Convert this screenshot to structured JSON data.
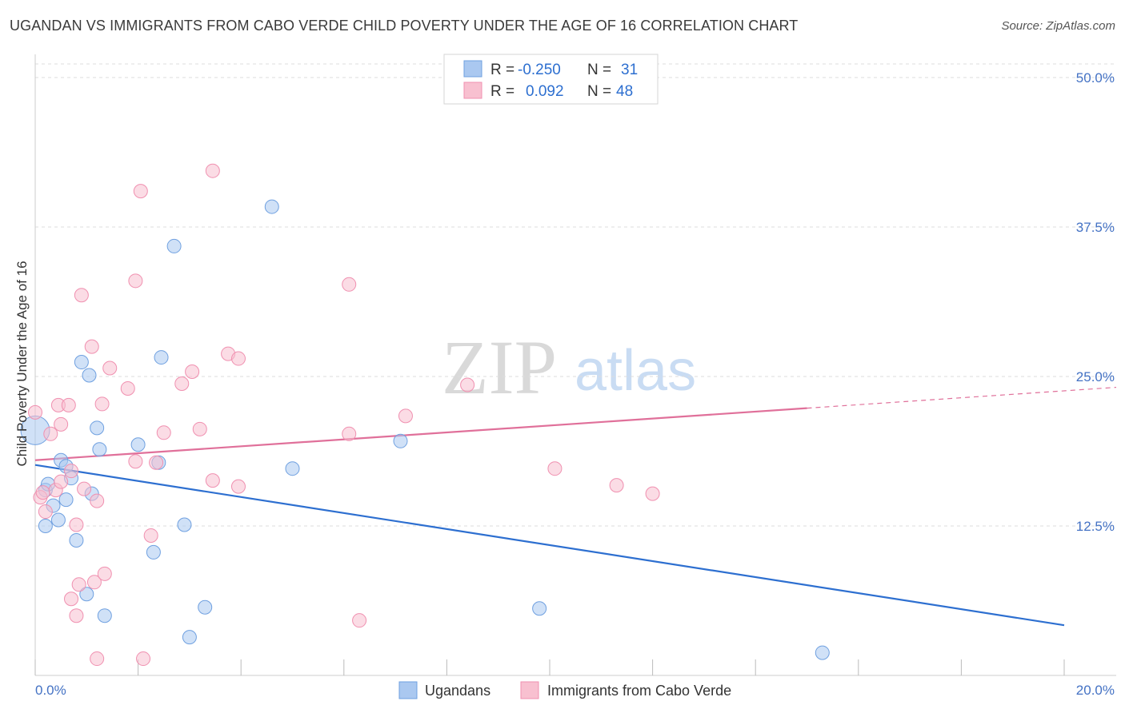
{
  "title": "UGANDAN VS IMMIGRANTS FROM CABO VERDE CHILD POVERTY UNDER THE AGE OF 16 CORRELATION CHART",
  "source": "Source: ZipAtlas.com",
  "watermark": {
    "zip": "ZIP",
    "atlas": "atlas"
  },
  "stats": [
    {
      "r_label": "R =",
      "r_value": "-0.250",
      "n_label": "N =",
      "n_value": "31",
      "color": "#aac8f0"
    },
    {
      "r_label": "R =",
      "r_value": "0.092",
      "n_label": "N =",
      "n_value": "48",
      "color": "#f8c0d0"
    }
  ],
  "legend": [
    {
      "label": "Ugandans",
      "color": "#aac8f0"
    },
    {
      "label": "Immigrants from Cabo Verde",
      "color": "#f8c0d0"
    }
  ],
  "chart_data": {
    "type": "scatter",
    "title": "UGANDAN VS IMMIGRANTS FROM CABO VERDE CHILD POVERTY UNDER THE AGE OF 16 CORRELATION CHART",
    "xlabel": "",
    "ylabel": "Child Poverty Under the Age of 16",
    "xlim": [
      0,
      20
    ],
    "ylim": [
      0,
      50
    ],
    "x_tick_labels": [
      "0.0%",
      "20.0%"
    ],
    "y_ticks": [
      {
        "value": 12.5,
        "label": "12.5%"
      },
      {
        "value": 25,
        "label": "25.0%"
      },
      {
        "value": 37.5,
        "label": "37.5%"
      },
      {
        "value": 50,
        "label": "50.0%"
      }
    ],
    "series": [
      {
        "name": "Ugandans",
        "color": "#aac8f0",
        "stroke": "#6fa0e0",
        "line_color": "#2d6fd0",
        "trend": {
          "x0": 0,
          "y0": 17.6,
          "x1": 20,
          "y1": 4.2,
          "solid_until": 20
        },
        "points": [
          [
            0.0,
            20.5
          ],
          [
            0.2,
            15.5
          ],
          [
            0.25,
            16.0
          ],
          [
            0.2,
            12.5
          ],
          [
            0.35,
            14.2
          ],
          [
            0.45,
            13.0
          ],
          [
            0.5,
            18.0
          ],
          [
            0.6,
            17.5
          ],
          [
            0.6,
            14.7
          ],
          [
            0.7,
            16.5
          ],
          [
            0.8,
            11.3
          ],
          [
            0.9,
            26.2
          ],
          [
            1.0,
            6.8
          ],
          [
            1.05,
            25.1
          ],
          [
            1.1,
            15.2
          ],
          [
            1.2,
            20.7
          ],
          [
            1.25,
            18.9
          ],
          [
            1.35,
            5.0
          ],
          [
            2.0,
            19.3
          ],
          [
            2.3,
            10.3
          ],
          [
            2.4,
            17.8
          ],
          [
            2.45,
            26.6
          ],
          [
            2.7,
            35.9
          ],
          [
            2.9,
            12.6
          ],
          [
            3.0,
            3.2
          ],
          [
            3.3,
            5.7
          ],
          [
            4.6,
            39.2
          ],
          [
            5.0,
            17.3
          ],
          [
            7.1,
            19.6
          ],
          [
            9.8,
            5.6
          ],
          [
            15.3,
            1.9
          ]
        ]
      },
      {
        "name": "Immigrants from Cabo Verde",
        "color": "#f8c0d0",
        "stroke": "#f090b0",
        "line_color": "#e0709a",
        "trend": {
          "x0": 0,
          "y0": 18.0,
          "x1": 20,
          "y1": 23.8,
          "solid_until": 15.0
        },
        "points": [
          [
            0.0,
            22.0
          ],
          [
            0.1,
            14.9
          ],
          [
            0.15,
            15.3
          ],
          [
            0.2,
            13.7
          ],
          [
            0.3,
            20.2
          ],
          [
            0.4,
            15.5
          ],
          [
            0.45,
            22.6
          ],
          [
            0.5,
            21.0
          ],
          [
            0.5,
            16.2
          ],
          [
            0.65,
            22.6
          ],
          [
            0.7,
            6.4
          ],
          [
            0.7,
            17.1
          ],
          [
            0.8,
            5.0
          ],
          [
            0.8,
            12.6
          ],
          [
            0.85,
            7.6
          ],
          [
            0.9,
            31.8
          ],
          [
            0.95,
            15.6
          ],
          [
            1.1,
            27.5
          ],
          [
            1.15,
            7.8
          ],
          [
            1.2,
            14.6
          ],
          [
            1.2,
            1.4
          ],
          [
            1.3,
            22.7
          ],
          [
            1.35,
            8.5
          ],
          [
            1.45,
            25.7
          ],
          [
            1.8,
            24.0
          ],
          [
            1.95,
            17.9
          ],
          [
            1.95,
            33.0
          ],
          [
            2.05,
            40.5
          ],
          [
            2.1,
            1.4
          ],
          [
            2.25,
            11.7
          ],
          [
            2.35,
            17.8
          ],
          [
            2.5,
            20.3
          ],
          [
            2.85,
            24.4
          ],
          [
            3.05,
            25.4
          ],
          [
            3.2,
            20.6
          ],
          [
            3.45,
            16.3
          ],
          [
            3.45,
            42.2
          ],
          [
            3.75,
            26.9
          ],
          [
            3.95,
            26.5
          ],
          [
            3.95,
            15.8
          ],
          [
            6.1,
            20.2
          ],
          [
            6.1,
            32.7
          ],
          [
            6.3,
            4.6
          ],
          [
            7.2,
            21.7
          ],
          [
            8.4,
            24.3
          ],
          [
            10.1,
            17.3
          ],
          [
            11.3,
            15.9
          ],
          [
            12.0,
            15.2
          ]
        ]
      }
    ]
  }
}
